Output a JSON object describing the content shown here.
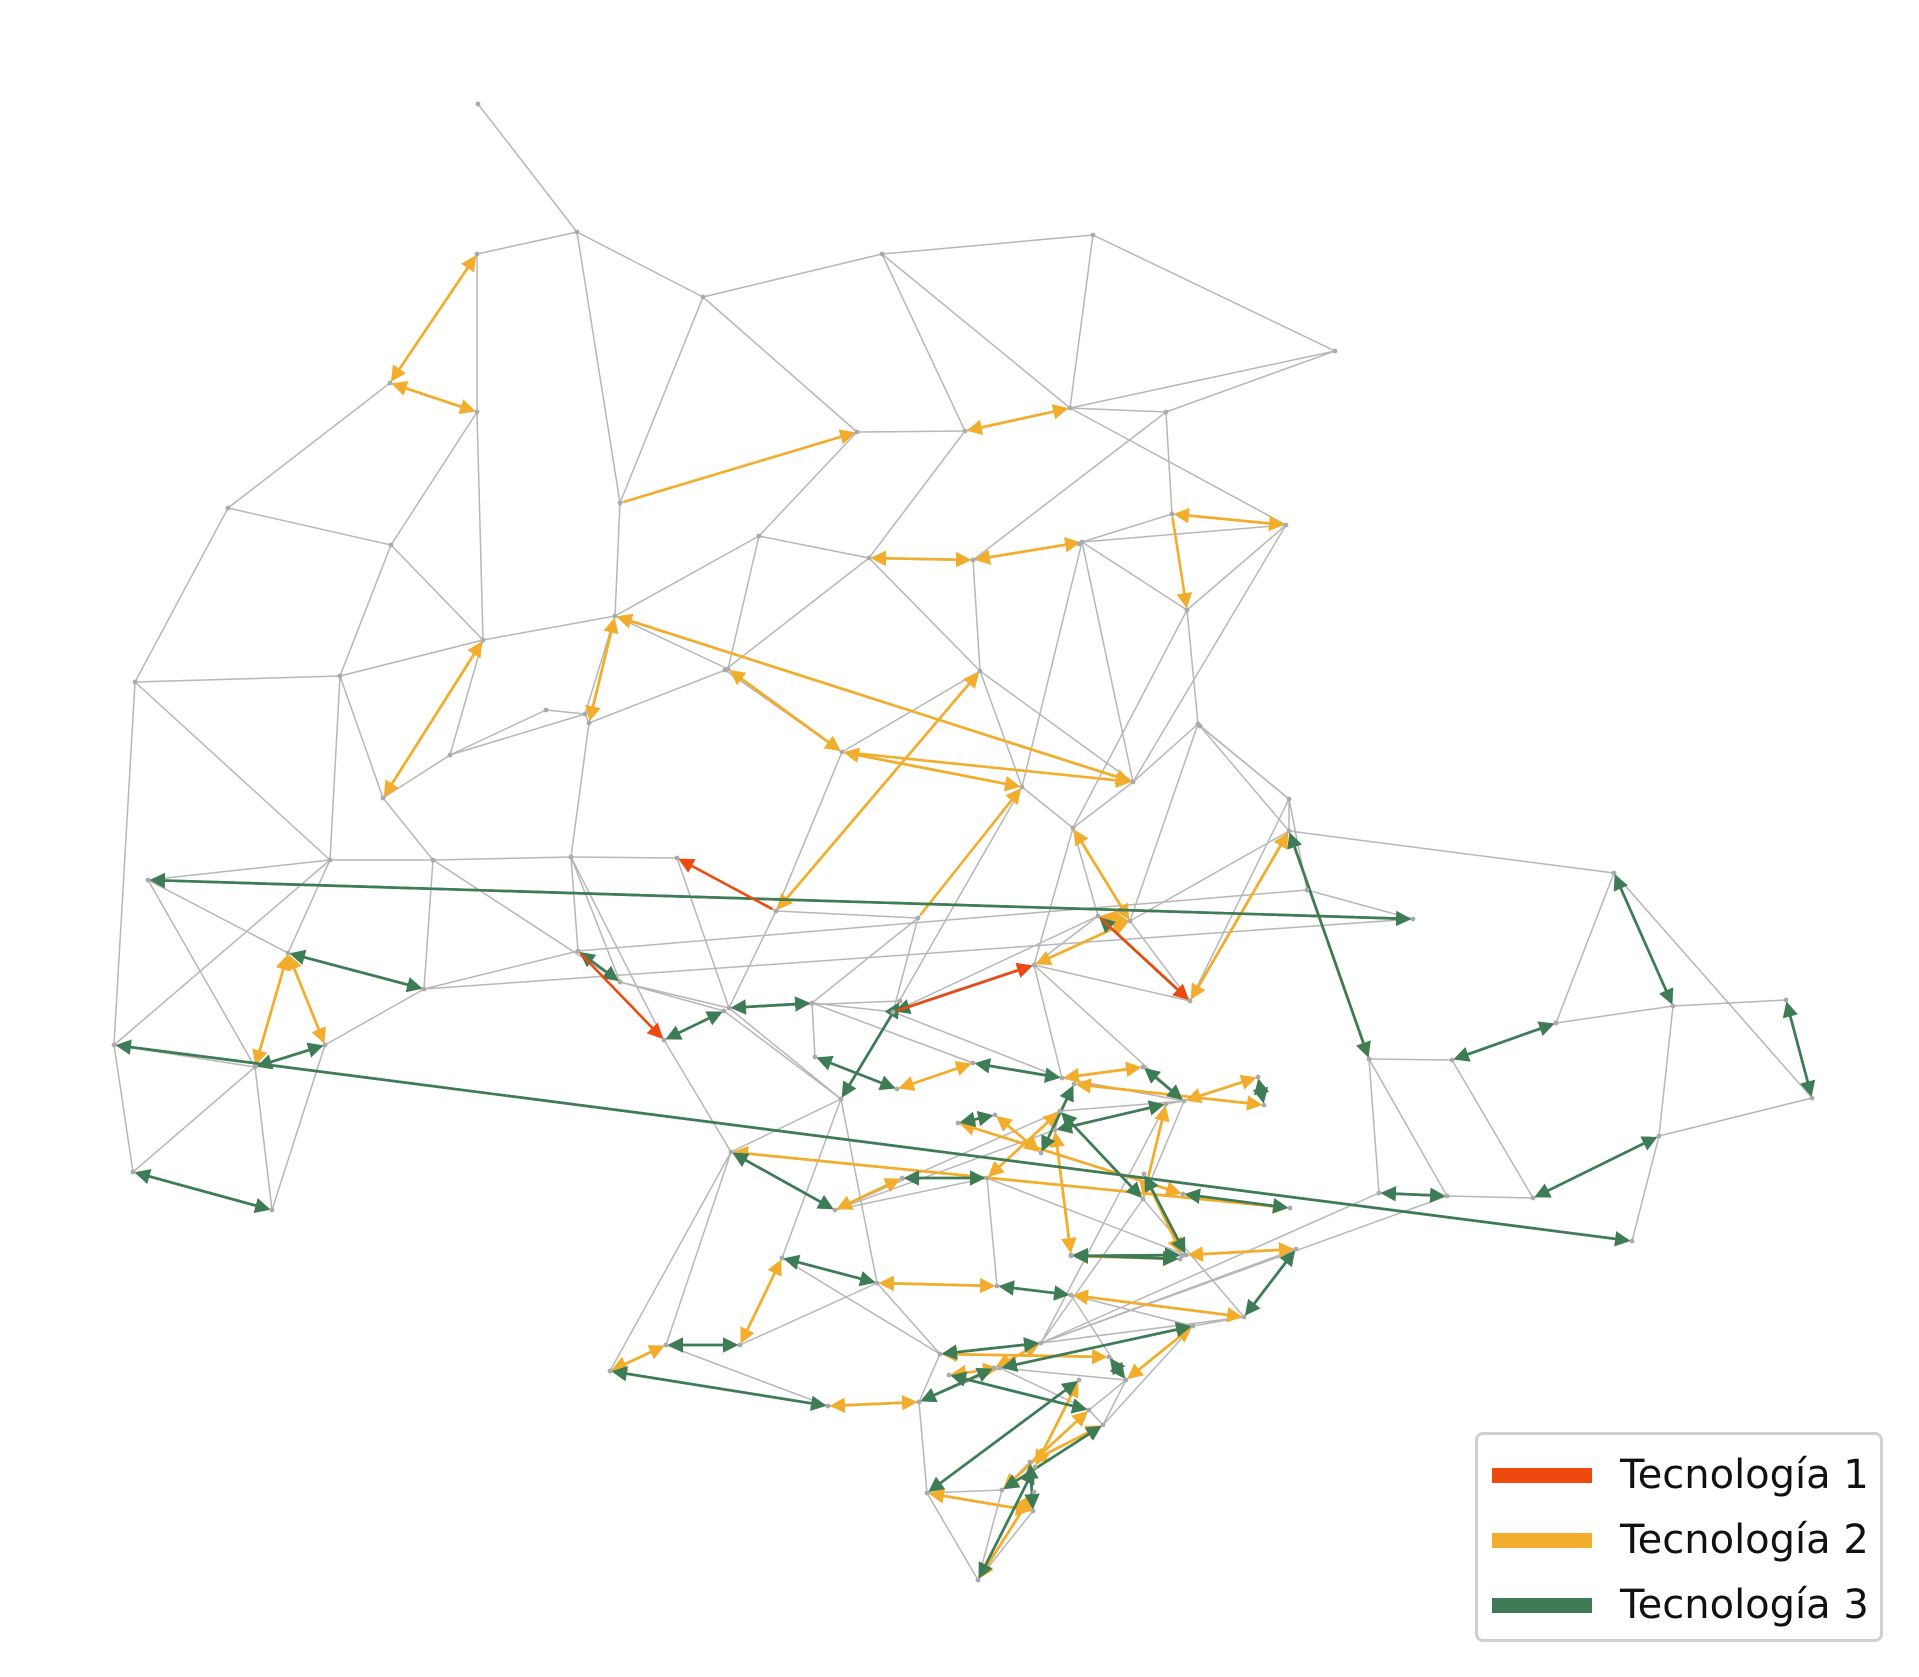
{
  "legend": {
    "items": [
      {
        "label": "Tecnología 1",
        "color": "#ee4a0f"
      },
      {
        "label": "Tecnología 2",
        "color": "#f2ad2c"
      },
      {
        "label": "Tecnología 3",
        "color": "#3d7c55"
      }
    ]
  },
  "colors": {
    "grid": "#b7b7b7",
    "node": "#aaaaaa",
    "background": "#ffffff"
  }
}
